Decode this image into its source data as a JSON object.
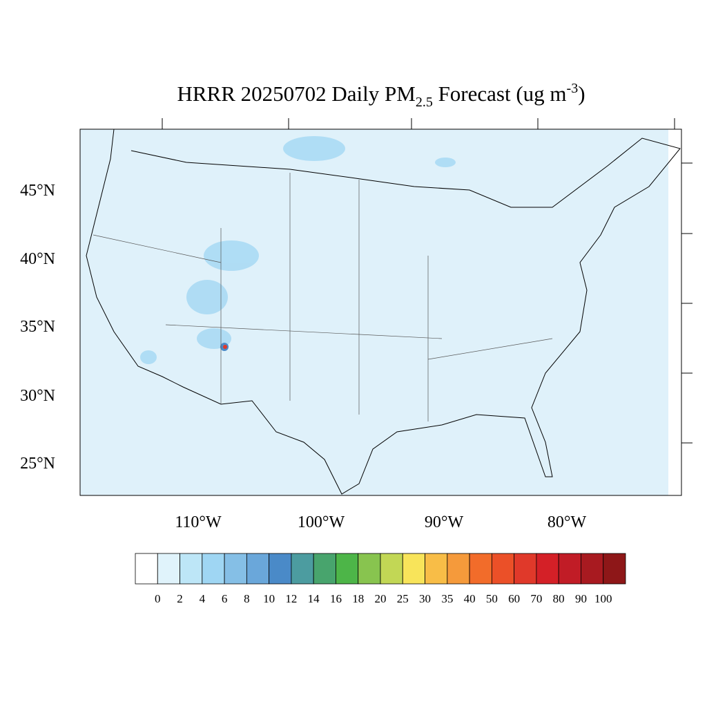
{
  "header": {
    "title": "HRRR 20250702 Daily PM",
    "title_sub": "2.5",
    "title_mid": " Forecast (ug m",
    "title_sup": "-3",
    "title_end": ")"
  },
  "map": {
    "lat_labels": [
      "45°N",
      "40°N",
      "35°N",
      "30°N",
      "25°N"
    ],
    "lon_labels": [
      "110°W",
      "100°W",
      "90°W",
      "80°W"
    ]
  },
  "colorbar": {
    "levels": [
      0,
      2,
      4,
      6,
      8,
      10,
      12,
      14,
      16,
      18,
      20,
      25,
      30,
      35,
      40,
      50,
      60,
      70,
      80,
      90,
      100
    ],
    "colors": [
      "#ffffff",
      "#e0f3fb",
      "#bde6f7",
      "#9fd6f3",
      "#85bfe6",
      "#6aa7da",
      "#4a8ac8",
      "#4c9ca0",
      "#48a46d",
      "#4db548",
      "#88c44f",
      "#c2d755",
      "#f8e45a",
      "#f8bd47",
      "#f59a3b",
      "#f26c2a",
      "#eb5028",
      "#e0392a",
      "#d42027",
      "#c11c26",
      "#a81a20",
      "#8e1718"
    ]
  }
}
